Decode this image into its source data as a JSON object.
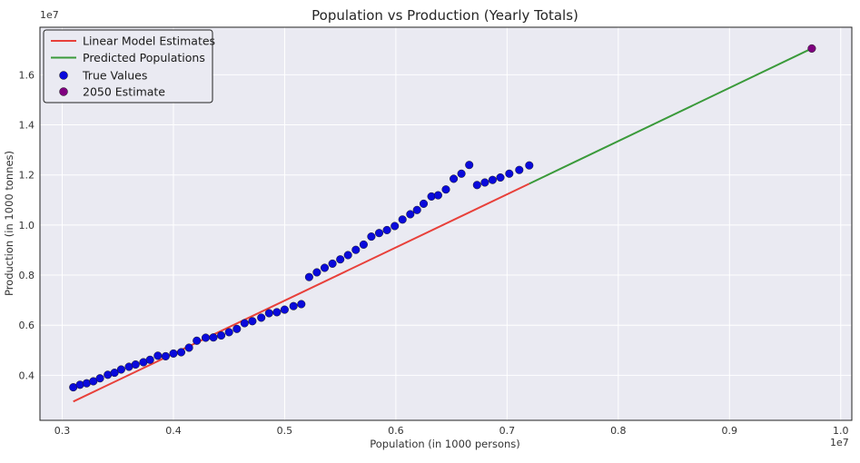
{
  "chart_data": {
    "type": "scatter",
    "title": "Population vs Production (Yearly Totals)",
    "xlabel": "Population (in 1000 persons)",
    "ylabel": "Production (in 1000 tonnes)",
    "x_offset_label": "1e7",
    "y_offset_label": "1e7",
    "xlim": [
      2800000,
      10100000
    ],
    "ylim": [
      2200000,
      17900000
    ],
    "x_ticks": [
      3000000,
      4000000,
      5000000,
      6000000,
      7000000,
      8000000,
      9000000,
      10000000
    ],
    "x_tick_labels": [
      "0.3",
      "0.4",
      "0.5",
      "0.6",
      "0.7",
      "0.8",
      "0.9",
      "1.0"
    ],
    "y_ticks": [
      4000000,
      6000000,
      8000000,
      10000000,
      12000000,
      14000000,
      16000000
    ],
    "y_tick_labels": [
      "0.4",
      "0.6",
      "0.8",
      "1.0",
      "1.2",
      "1.4",
      "1.6"
    ],
    "grid": true,
    "legend_position": "top-left",
    "background": "#eaeaf2",
    "series": [
      {
        "name": "Linear Model Estimates",
        "kind": "line",
        "color": "#e8403a",
        "x": [
          3100000,
          7200000
        ],
        "y": [
          2950000,
          11650000
        ]
      },
      {
        "name": "Predicted Populations",
        "kind": "line",
        "color": "#3a9a3a",
        "x": [
          7200000,
          9740000
        ],
        "y": [
          11650000,
          17050000
        ]
      },
      {
        "name": "True Values",
        "kind": "scatter",
        "color": "#0a0adb",
        "x": [
          3100000,
          3160000,
          3220000,
          3280000,
          3340000,
          3410000,
          3470000,
          3530000,
          3600000,
          3660000,
          3730000,
          3790000,
          3860000,
          3930000,
          4000000,
          4070000,
          4140000,
          4210000,
          4290000,
          4360000,
          4430000,
          4500000,
          4570000,
          4640000,
          4710000,
          4790000,
          4860000,
          4930000,
          5000000,
          5080000,
          5150000,
          5220000,
          5290000,
          5360000,
          5430000,
          5500000,
          5570000,
          5640000,
          5710000,
          5780000,
          5850000,
          5920000,
          5990000,
          6060000,
          6130000,
          6190000,
          6250000,
          6320000,
          6380000,
          6450000,
          6520000,
          6590000,
          6660000,
          6730000,
          6800000,
          6870000,
          6940000,
          7020000,
          7110000,
          7200000
        ],
        "y": [
          3520000,
          3620000,
          3680000,
          3760000,
          3880000,
          4020000,
          4100000,
          4230000,
          4340000,
          4430000,
          4520000,
          4620000,
          4780000,
          4760000,
          4870000,
          4920000,
          5100000,
          5380000,
          5500000,
          5510000,
          5590000,
          5720000,
          5850000,
          6080000,
          6160000,
          6300000,
          6480000,
          6520000,
          6620000,
          6760000,
          6840000,
          7920000,
          8110000,
          8290000,
          8460000,
          8630000,
          8800000,
          9010000,
          9220000,
          9540000,
          9680000,
          9800000,
          9960000,
          10220000,
          10430000,
          10600000,
          10850000,
          11140000,
          11190000,
          11420000,
          11850000,
          12050000,
          12400000,
          11600000,
          11700000,
          11800000,
          11900000,
          12050000,
          12200000,
          12380000
        ]
      },
      {
        "name": "2050 Estimate",
        "kind": "scatter",
        "color": "#7f007f",
        "x": [
          9740000
        ],
        "y": [
          17050000
        ]
      }
    ]
  }
}
